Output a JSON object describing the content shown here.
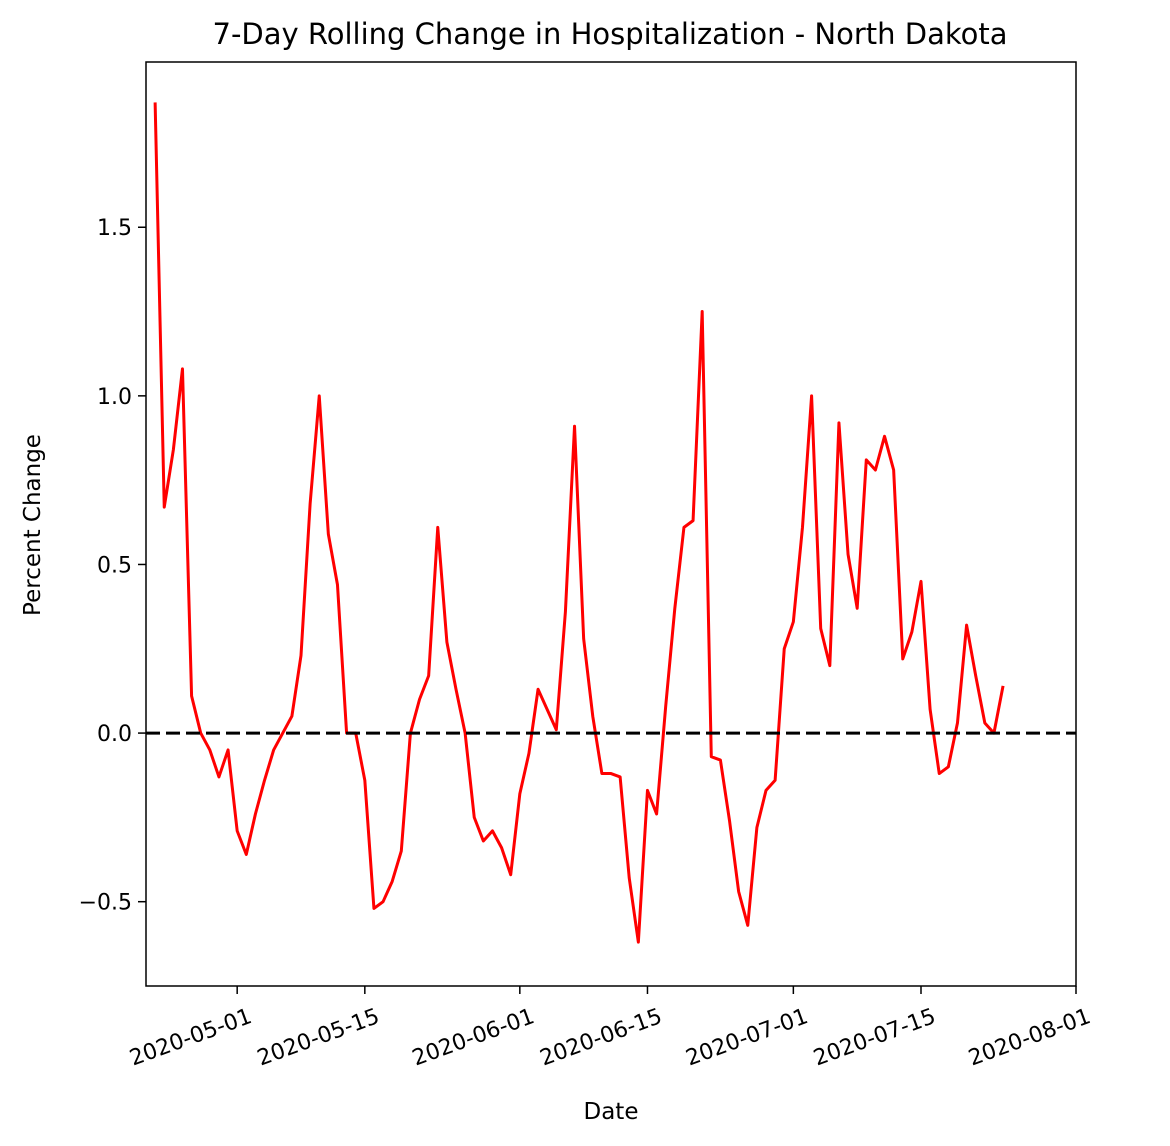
{
  "chart_data": {
    "type": "line",
    "title": "7-Day Rolling Change in Hospitalization - North Dakota",
    "xlabel": "Date",
    "ylabel": "Percent Change",
    "x_start_date": "2020-04-22",
    "x_step_days": 1,
    "xlim": [
      "2020-04-21",
      "2020-08-01"
    ],
    "ylim": [
      -0.75,
      1.99
    ],
    "x_ticks": [
      {
        "date": "2020-05-01",
        "label": "2020-05-01"
      },
      {
        "date": "2020-05-15",
        "label": "2020-05-15"
      },
      {
        "date": "2020-06-01",
        "label": "2020-06-01"
      },
      {
        "date": "2020-06-15",
        "label": "2020-06-15"
      },
      {
        "date": "2020-07-01",
        "label": "2020-07-01"
      },
      {
        "date": "2020-07-15",
        "label": "2020-07-15"
      },
      {
        "date": "2020-08-01",
        "label": "2020-08-01"
      }
    ],
    "y_ticks": [
      {
        "value": -0.5,
        "label": "−0.5"
      },
      {
        "value": 0.0,
        "label": "0.0"
      },
      {
        "value": 0.5,
        "label": "0.5"
      },
      {
        "value": 1.0,
        "label": "1.0"
      },
      {
        "value": 1.5,
        "label": "1.5"
      }
    ],
    "grid": false,
    "series": [
      {
        "color": "#ff0000",
        "values": [
          1.87,
          0.67,
          0.84,
          1.08,
          0.11,
          0.0,
          -0.05,
          -0.13,
          -0.05,
          -0.29,
          -0.36,
          -0.24,
          -0.14,
          -0.05,
          0.0,
          0.05,
          0.23,
          0.68,
          1.0,
          0.59,
          0.44,
          0.0,
          0.0,
          -0.14,
          -0.52,
          -0.5,
          -0.44,
          -0.35,
          0.0,
          0.1,
          0.17,
          0.61,
          0.27,
          0.13,
          0.0,
          -0.25,
          -0.32,
          -0.29,
          -0.34,
          -0.42,
          -0.18,
          -0.06,
          0.13,
          0.07,
          0.01,
          0.36,
          0.91,
          0.28,
          0.05,
          -0.12,
          -0.12,
          -0.13,
          -0.43,
          -0.62,
          -0.17,
          -0.24,
          0.08,
          0.37,
          0.61,
          0.63,
          1.25,
          -0.07,
          -0.08,
          -0.26,
          -0.47,
          -0.57,
          -0.28,
          -0.17,
          -0.14,
          0.25,
          0.33,
          0.61,
          1.0,
          0.31,
          0.2,
          0.92,
          0.53,
          0.37,
          0.81,
          0.78,
          0.88,
          0.78,
          0.22,
          0.3,
          0.45,
          0.07,
          -0.12,
          -0.1,
          0.03,
          0.32,
          0.17,
          0.03,
          0.0,
          0.14
        ]
      }
    ],
    "reference_lines": [
      {
        "axis": "y",
        "value": 0.0,
        "style": "dashed",
        "color": "#000000"
      }
    ]
  }
}
